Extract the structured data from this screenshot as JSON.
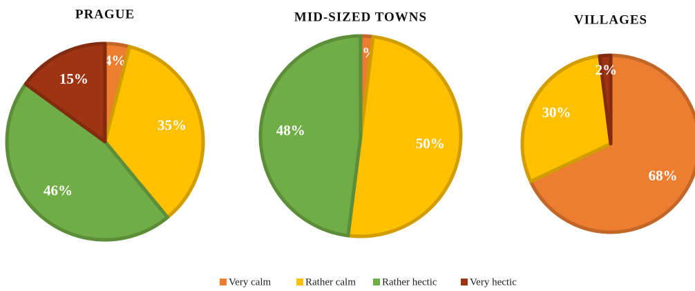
{
  "chart_data": [
    {
      "type": "pie",
      "title": "PRAGUE",
      "categories": [
        "Very calm",
        "Rather calm",
        "Rather hectic",
        "Very hectic"
      ],
      "values": [
        4,
        35,
        46,
        15
      ],
      "value_labels": [
        "4%",
        "35%",
        "46%",
        "15%"
      ],
      "colors": [
        "#ed7d31",
        "#ffc000",
        "#70ad47",
        "#9e3412"
      ]
    },
    {
      "type": "pie",
      "title": "MID-SIZED TOWNS",
      "categories": [
        "Very calm",
        "Rather calm",
        "Rather hectic"
      ],
      "values": [
        2,
        50,
        48
      ],
      "value_labels": [
        "2%",
        "50%",
        "48%"
      ],
      "colors": [
        "#ed7d31",
        "#ffc000",
        "#70ad47"
      ]
    },
    {
      "type": "pie",
      "title": "VILLAGES",
      "categories": [
        "Very calm",
        "Rather calm",
        "Very hectic"
      ],
      "values": [
        68,
        30,
        2
      ],
      "value_labels": [
        "68%",
        "30%",
        "2%"
      ],
      "colors": [
        "#ed7d31",
        "#ffc000",
        "#9e3412"
      ]
    }
  ]
}
